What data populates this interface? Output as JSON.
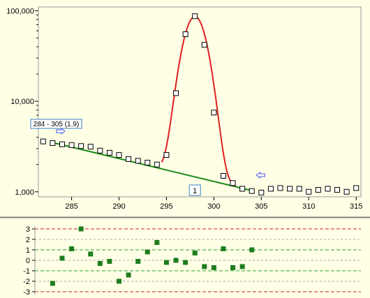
{
  "chart_data": [
    {
      "type": "scatter",
      "name": "main",
      "xlim": [
        281.5,
        315.5
      ],
      "ylim": [
        880,
        110000
      ],
      "y_scale": "log",
      "x_ticks": [
        285,
        290,
        295,
        300,
        305,
        310,
        315
      ],
      "x_tick_labels": [
        "285",
        "290",
        "295",
        "300",
        "305",
        "310",
        "315"
      ],
      "y_ticks": [
        1000,
        10000,
        100000
      ],
      "y_tick_labels": [
        "1,000",
        "10,000",
        "100,000"
      ],
      "points": [
        [
          282,
          3600
        ],
        [
          283,
          3450
        ],
        [
          284,
          3350
        ],
        [
          285,
          3280
        ],
        [
          286,
          3200
        ],
        [
          287,
          3150
        ],
        [
          288,
          2850
        ],
        [
          289,
          2700
        ],
        [
          290,
          2550
        ],
        [
          291,
          2300
        ],
        [
          292,
          2200
        ],
        [
          293,
          2100
        ],
        [
          294,
          2000
        ],
        [
          295,
          2550
        ],
        [
          296,
          12300
        ],
        [
          297,
          55000
        ],
        [
          298,
          87000
        ],
        [
          299,
          42000
        ],
        [
          300,
          7500
        ],
        [
          301,
          1500
        ],
        [
          302,
          1250
        ],
        [
          303,
          1080
        ],
        [
          304,
          1020
        ],
        [
          305,
          980
        ],
        [
          306,
          1080
        ],
        [
          307,
          1100
        ],
        [
          308,
          1080
        ],
        [
          309,
          1080
        ],
        [
          310,
          1000
        ],
        [
          311,
          1050
        ],
        [
          312,
          1080
        ],
        [
          313,
          1050
        ],
        [
          314,
          1000
        ],
        [
          315,
          1100
        ]
      ],
      "baseline": [
        [
          283,
          3500
        ],
        [
          304,
          1030
        ]
      ],
      "fit_curve": {
        "baseline_start": [
          283,
          3500
        ],
        "baseline_end": [
          304,
          1030
        ],
        "peak_center": 298.0,
        "peak_height": 85000,
        "peak_sigma": 1.05,
        "x_range": [
          294.5,
          302.3
        ]
      },
      "range_label": "284 - 305 (1.9)",
      "range_start_x": 284,
      "range_end_x": 305,
      "peak_label": "1",
      "peak_label_x": 298,
      "colors": {
        "points": "#000000",
        "fit": "#e02020",
        "baseline": "#1a8c1a",
        "marker": "#4455dd"
      }
    },
    {
      "type": "scatter",
      "name": "residuals",
      "ylim": [
        -3.3,
        3.3
      ],
      "y_ticks": [
        3,
        2,
        1,
        0,
        -1,
        -2,
        -3
      ],
      "y_tick_labels": [
        "3",
        "2",
        "1",
        "0",
        "-1",
        "-2",
        "-3"
      ],
      "limit_lines": [
        3,
        -3
      ],
      "band_lines": [
        1,
        -1
      ],
      "grid_lines": [
        2,
        0,
        -2
      ],
      "points": [
        [
          283,
          -2.2
        ],
        [
          284,
          0.2
        ],
        [
          285,
          1.1
        ],
        [
          286,
          3.0
        ],
        [
          287,
          0.6
        ],
        [
          288,
          -0.3
        ],
        [
          289,
          -0.1
        ],
        [
          290,
          -2.0
        ],
        [
          291,
          -1.4
        ],
        [
          292,
          -0.1
        ],
        [
          293,
          0.8
        ],
        [
          294,
          1.7
        ],
        [
          295,
          -0.2
        ],
        [
          296,
          0.0
        ],
        [
          297,
          -0.2
        ],
        [
          298,
          0.7
        ],
        [
          299,
          -0.6
        ],
        [
          300,
          -0.7
        ],
        [
          301,
          1.1
        ],
        [
          302,
          -0.7
        ],
        [
          303,
          -0.6
        ],
        [
          304,
          1.0
        ]
      ],
      "colors": {
        "points": "#1e7d1e",
        "limit": "#cc2222",
        "band": "#2aa02a",
        "grid": "#aaaaaa"
      }
    }
  ]
}
